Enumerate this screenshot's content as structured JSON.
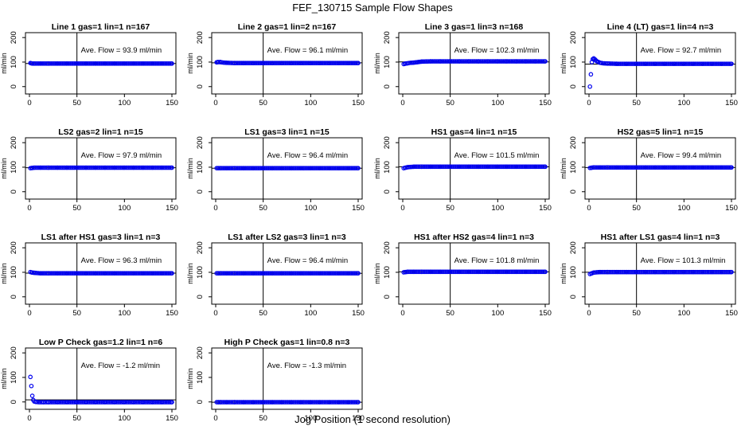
{
  "figure": {
    "title": "FEF_130715  Sample Flow Shapes",
    "xlabel": "Jog Position (1 second resolution)"
  },
  "chart_data": [
    {
      "type": "scatter",
      "title": "Line 1 gas=1 lin=1 n=167",
      "ylabel": "ml/min",
      "avg_label": "Ave. Flow =  93.9  ml/min",
      "xlim": [
        0,
        150
      ],
      "ylim": [
        -30,
        220
      ],
      "xticks": [
        0,
        50,
        100,
        150
      ],
      "yticks": [
        0,
        100,
        200
      ],
      "color": "#0000ee",
      "series": [
        {
          "x": [
            1,
            2,
            3,
            5,
            8,
            12,
            20,
            30,
            40,
            50,
            60,
            70,
            80,
            90,
            100,
            110,
            120,
            130,
            140,
            150
          ],
          "y": [
            96,
            95,
            94,
            94,
            94,
            94,
            94,
            94,
            94,
            94,
            94,
            94,
            94,
            94,
            94,
            94,
            94,
            94,
            94,
            94
          ]
        }
      ]
    },
    {
      "type": "scatter",
      "title": "Line 2 gas=1 lin=2 n=167",
      "ylabel": "ml/min",
      "avg_label": "Ave. Flow =  96.1  ml/min",
      "xlim": [
        0,
        150
      ],
      "ylim": [
        -30,
        220
      ],
      "xticks": [
        0,
        50,
        100,
        150
      ],
      "yticks": [
        0,
        100,
        200
      ],
      "color": "#0000ee",
      "series": [
        {
          "x": [
            1,
            2,
            3,
            5,
            8,
            12,
            20,
            30,
            40,
            50,
            60,
            70,
            80,
            90,
            100,
            110,
            120,
            130,
            140,
            150
          ],
          "y": [
            99,
            100,
            100,
            100,
            98,
            97,
            96,
            96,
            96,
            96,
            96,
            96,
            96,
            96,
            96,
            96,
            96,
            96,
            96,
            96
          ]
        }
      ]
    },
    {
      "type": "scatter",
      "title": "Line 3 gas=1 lin=3 n=168",
      "ylabel": "ml/min",
      "avg_label": "Ave. Flow =  102.3  ml/min",
      "xlim": [
        0,
        150
      ],
      "ylim": [
        -30,
        220
      ],
      "xticks": [
        0,
        50,
        100,
        150
      ],
      "yticks": [
        0,
        100,
        200
      ],
      "color": "#0000ee",
      "series": [
        {
          "x": [
            1,
            3,
            5,
            8,
            12,
            16,
            20,
            30,
            40,
            50,
            60,
            70,
            80,
            90,
            100,
            110,
            120,
            130,
            140,
            150
          ],
          "y": [
            92,
            94,
            95,
            97,
            98,
            100,
            102,
            103,
            103,
            103,
            103,
            103,
            103,
            103,
            103,
            103,
            103,
            103,
            103,
            103
          ]
        }
      ]
    },
    {
      "type": "scatter",
      "title": "Line 4 (LT) gas=1 lin=4 n=3",
      "ylabel": "ml/min",
      "avg_label": "Ave. Flow =  92.7  ml/min",
      "xlim": [
        0,
        150
      ],
      "ylim": [
        -30,
        220
      ],
      "xticks": [
        0,
        50,
        100,
        150
      ],
      "yticks": [
        0,
        100,
        200
      ],
      "color": "#0000ee",
      "series": [
        {
          "x": [
            1,
            2,
            3,
            4,
            5,
            6,
            7,
            8,
            10,
            12,
            15,
            20,
            30,
            40,
            50,
            60,
            70,
            80,
            90,
            100,
            110,
            120,
            130,
            140,
            150
          ],
          "y": [
            0,
            50,
            100,
            112,
            115,
            112,
            108,
            104,
            100,
            97,
            95,
            94,
            93,
            93,
            93,
            93,
            93,
            93,
            93,
            93,
            93,
            93,
            93,
            93,
            93
          ]
        }
      ]
    },
    {
      "type": "scatter",
      "title": "LS2 gas=2 lin=1 n=15",
      "ylabel": "ml/min",
      "avg_label": "Ave. Flow =  97.9  ml/min",
      "xlim": [
        0,
        150
      ],
      "ylim": [
        -30,
        220
      ],
      "xticks": [
        0,
        50,
        100,
        150
      ],
      "yticks": [
        0,
        100,
        200
      ],
      "color": "#0000ee",
      "series": [
        {
          "x": [
            1,
            3,
            5,
            8,
            12,
            20,
            30,
            40,
            50,
            60,
            70,
            80,
            90,
            100,
            110,
            120,
            130,
            140,
            150
          ],
          "y": [
            96,
            97,
            98,
            98,
            98,
            98,
            98,
            98,
            98,
            98,
            98,
            98,
            98,
            98,
            98,
            98,
            98,
            98,
            98
          ]
        }
      ]
    },
    {
      "type": "scatter",
      "title": "LS1 gas=3 lin=1 n=15",
      "ylabel": "ml/min",
      "avg_label": "Ave. Flow =  96.4  ml/min",
      "xlim": [
        0,
        150
      ],
      "ylim": [
        -30,
        220
      ],
      "xticks": [
        0,
        50,
        100,
        150
      ],
      "yticks": [
        0,
        100,
        200
      ],
      "color": "#0000ee",
      "series": [
        {
          "x": [
            1,
            3,
            5,
            8,
            12,
            20,
            30,
            40,
            50,
            60,
            70,
            80,
            90,
            100,
            110,
            120,
            130,
            140,
            150
          ],
          "y": [
            96,
            96,
            96,
            96,
            96,
            96,
            96,
            96,
            96,
            96,
            96,
            96,
            96,
            96,
            96,
            96,
            96,
            96,
            96
          ]
        }
      ]
    },
    {
      "type": "scatter",
      "title": "HS1 gas=4 lin=1 n=15",
      "ylabel": "ml/min",
      "avg_label": "Ave. Flow =  101.5  ml/min",
      "xlim": [
        0,
        150
      ],
      "ylim": [
        -30,
        220
      ],
      "xticks": [
        0,
        50,
        100,
        150
      ],
      "yticks": [
        0,
        100,
        200
      ],
      "color": "#0000ee",
      "series": [
        {
          "x": [
            1,
            3,
            5,
            8,
            12,
            20,
            30,
            40,
            50,
            60,
            70,
            80,
            90,
            100,
            110,
            120,
            130,
            140,
            150
          ],
          "y": [
            96,
            98,
            100,
            101,
            102,
            102,
            102,
            102,
            102,
            102,
            102,
            102,
            102,
            102,
            102,
            102,
            102,
            102,
            102
          ]
        }
      ]
    },
    {
      "type": "scatter",
      "title": "HS2 gas=5 lin=1 n=15",
      "ylabel": "ml/min",
      "avg_label": "Ave. Flow =  99.4  ml/min",
      "xlim": [
        0,
        150
      ],
      "ylim": [
        -30,
        220
      ],
      "xticks": [
        0,
        50,
        100,
        150
      ],
      "yticks": [
        0,
        100,
        200
      ],
      "color": "#0000ee",
      "series": [
        {
          "x": [
            1,
            3,
            5,
            8,
            12,
            20,
            30,
            40,
            50,
            60,
            70,
            80,
            90,
            100,
            110,
            120,
            130,
            140,
            150
          ],
          "y": [
            97,
            98,
            99,
            99,
            99,
            99,
            99,
            99,
            99,
            99,
            99,
            99,
            99,
            99,
            99,
            99,
            99,
            99,
            99
          ]
        }
      ]
    },
    {
      "type": "scatter",
      "title": "LS1 after HS1 gas=3 lin=1 n=3",
      "ylabel": "ml/min",
      "avg_label": "Ave. Flow =  96.3  ml/min",
      "xlim": [
        0,
        150
      ],
      "ylim": [
        -30,
        220
      ],
      "xticks": [
        0,
        50,
        100,
        150
      ],
      "yticks": [
        0,
        100,
        200
      ],
      "color": "#0000ee",
      "series": [
        {
          "x": [
            1,
            3,
            5,
            8,
            12,
            20,
            30,
            40,
            50,
            60,
            70,
            80,
            90,
            100,
            110,
            120,
            130,
            140,
            150
          ],
          "y": [
            101,
            99,
            98,
            97,
            96,
            96,
            96,
            96,
            96,
            96,
            96,
            96,
            96,
            96,
            96,
            96,
            96,
            96,
            96
          ]
        }
      ]
    },
    {
      "type": "scatter",
      "title": "LS1 after LS2 gas=3 lin=1 n=3",
      "ylabel": "ml/min",
      "avg_label": "Ave. Flow =  96.4  ml/min",
      "xlim": [
        0,
        150
      ],
      "ylim": [
        -30,
        220
      ],
      "xticks": [
        0,
        50,
        100,
        150
      ],
      "yticks": [
        0,
        100,
        200
      ],
      "color": "#0000ee",
      "series": [
        {
          "x": [
            1,
            3,
            5,
            8,
            12,
            20,
            30,
            40,
            50,
            60,
            70,
            80,
            90,
            100,
            110,
            120,
            130,
            140,
            150
          ],
          "y": [
            96,
            96,
            96,
            96,
            96,
            96,
            96,
            96,
            96,
            96,
            96,
            96,
            96,
            96,
            96,
            96,
            96,
            96,
            96
          ]
        }
      ]
    },
    {
      "type": "scatter",
      "title": "HS1 after HS2 gas=4 lin=1 n=3",
      "ylabel": "ml/min",
      "avg_label": "Ave. Flow =  101.8  ml/min",
      "xlim": [
        0,
        150
      ],
      "ylim": [
        -30,
        220
      ],
      "xticks": [
        0,
        50,
        100,
        150
      ],
      "yticks": [
        0,
        100,
        200
      ],
      "color": "#0000ee",
      "series": [
        {
          "x": [
            1,
            3,
            5,
            8,
            12,
            20,
            30,
            40,
            50,
            60,
            70,
            80,
            90,
            100,
            110,
            120,
            130,
            140,
            150
          ],
          "y": [
            100,
            101,
            102,
            102,
            102,
            102,
            102,
            102,
            102,
            102,
            102,
            102,
            102,
            102,
            102,
            102,
            102,
            102,
            102
          ]
        }
      ]
    },
    {
      "type": "scatter",
      "title": "HS1 after LS1 gas=4 lin=1 n=3",
      "ylabel": "ml/min",
      "avg_label": "Ave. Flow =  101.3  ml/min",
      "xlim": [
        0,
        150
      ],
      "ylim": [
        -30,
        220
      ],
      "xticks": [
        0,
        50,
        100,
        150
      ],
      "yticks": [
        0,
        100,
        200
      ],
      "color": "#0000ee",
      "series": [
        {
          "x": [
            1,
            3,
            5,
            8,
            12,
            20,
            30,
            40,
            50,
            60,
            70,
            80,
            90,
            100,
            110,
            120,
            130,
            140,
            150
          ],
          "y": [
            93,
            96,
            99,
            100,
            101,
            101,
            101,
            101,
            101,
            101,
            101,
            101,
            101,
            101,
            101,
            101,
            101,
            101,
            101
          ]
        }
      ]
    },
    {
      "type": "scatter",
      "title": "Low P Check gas=1.2 lin=1 n=6",
      "ylabel": "ml/min",
      "avg_label": "Ave. Flow =  -1.2  ml/min",
      "xlim": [
        0,
        150
      ],
      "ylim": [
        -30,
        220
      ],
      "xticks": [
        0,
        50,
        100,
        150
      ],
      "yticks": [
        0,
        100,
        200
      ],
      "color": "#0000ee",
      "series": [
        {
          "x": [
            1,
            2,
            3,
            4,
            5,
            7,
            10,
            15,
            20,
            30,
            40,
            50,
            60,
            70,
            80,
            90,
            100,
            110,
            120,
            130,
            140,
            150
          ],
          "y": [
            102,
            65,
            25,
            8,
            2,
            0,
            -1,
            -1,
            -1,
            -1,
            -1,
            -1,
            -1,
            -1,
            -1,
            -1,
            -1,
            -1,
            -1,
            -1,
            -1,
            -1
          ]
        }
      ]
    },
    {
      "type": "scatter",
      "title": "High P Check gas=1 lin=0.8 n=3",
      "ylabel": "ml/min",
      "avg_label": "Ave. Flow =  -1.3  ml/min",
      "xlim": [
        0,
        150
      ],
      "ylim": [
        -30,
        220
      ],
      "xticks": [
        0,
        50,
        100,
        150
      ],
      "yticks": [
        0,
        100,
        200
      ],
      "color": "#0000ee",
      "series": [
        {
          "x": [
            1,
            3,
            5,
            8,
            12,
            20,
            30,
            40,
            50,
            60,
            70,
            80,
            90,
            100,
            110,
            120,
            130,
            140,
            150
          ],
          "y": [
            -1,
            -1,
            -1,
            -1,
            -1,
            -1,
            -1,
            -1,
            -1,
            -1,
            -1,
            -1,
            -1,
            -1,
            -1,
            -1,
            -1,
            -1,
            -1
          ]
        }
      ]
    }
  ]
}
